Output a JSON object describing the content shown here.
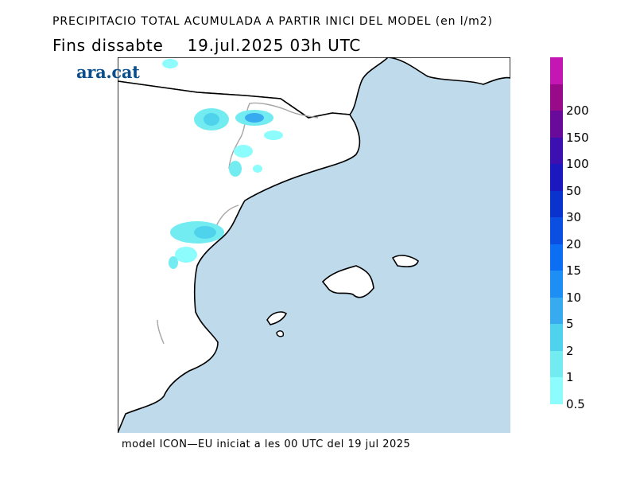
{
  "header": {
    "title": "PRECIPITACIO TOTAL ACUMULADA A PARTIR INICI DEL MODEL (en l/m2)",
    "valid_prefix": "Fins dissabte",
    "valid_time": "19.jul.2025 03h UTC"
  },
  "logo": {
    "text": "ara.cat"
  },
  "footer": {
    "text": "model ICON—EU iniciat a les 00 UTC del 19 jul 2025"
  },
  "colors": {
    "sea": "#bfdaeb",
    "land": "#ffffff",
    "coast": "#000000",
    "border": "#a6a6a6"
  },
  "legend": {
    "levels": [
      {
        "label": "0.5",
        "color": "#8cfcfc"
      },
      {
        "label": "1",
        "color": "#72ecf0"
      },
      {
        "label": "2",
        "color": "#4fd2ec"
      },
      {
        "label": "5",
        "color": "#38aaf0"
      },
      {
        "label": "10",
        "color": "#1c8ef4"
      },
      {
        "label": "15",
        "color": "#0c6ef2"
      },
      {
        "label": "20",
        "color": "#0a4fe2"
      },
      {
        "label": "30",
        "color": "#0a32cc"
      },
      {
        "label": "50",
        "color": "#1c18c0"
      },
      {
        "label": "100",
        "color": "#3c10b0"
      },
      {
        "label": "150",
        "color": "#6a0a9a"
      },
      {
        "label": "200",
        "color": "#980a88"
      },
      {
        "label": "",
        "color": "#c416b2"
      }
    ]
  }
}
